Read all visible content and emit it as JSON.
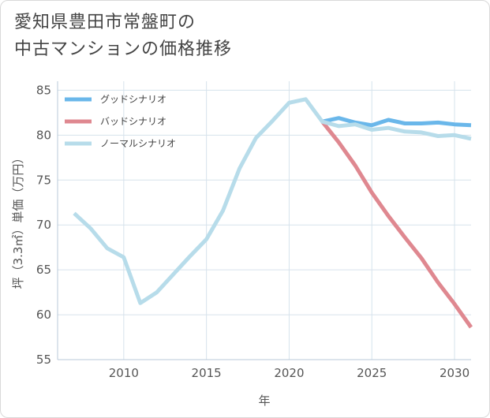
{
  "title": {
    "line1": "愛知県豊田市常盤町の",
    "line2": "中古マンションの価格推移"
  },
  "colors": {
    "good": "#6ab7ea",
    "bad": "#df8890",
    "normal": "#b7dcea",
    "grid": "#d6e2ec",
    "axis": "#b8c8d8"
  },
  "chart_data": {
    "type": "line",
    "title": "愛知県豊田市常盤町の中古マンションの価格推移",
    "xlabel": "年",
    "ylabel": "坪（3.3㎡）単価（万円）",
    "xlim": [
      2006,
      2031
    ],
    "ylim": [
      55,
      86
    ],
    "x_ticks": [
      2010,
      2015,
      2020,
      2025,
      2030
    ],
    "y_ticks": [
      55,
      60,
      65,
      70,
      75,
      80,
      85
    ],
    "legend_position": "top-left",
    "series": [
      {
        "name": "グッドシナリオ",
        "color_key": "good",
        "x": [
          2022,
          2023,
          2024,
          2025,
          2026,
          2027,
          2028,
          2029,
          2030,
          2031
        ],
        "y": [
          81.5,
          81.9,
          81.4,
          81.1,
          81.7,
          81.3,
          81.3,
          81.4,
          81.2,
          81.1
        ]
      },
      {
        "name": "バッドシナリオ",
        "color_key": "bad",
        "x": [
          2022,
          2023,
          2024,
          2025,
          2026,
          2027,
          2028,
          2029,
          2030,
          2031
        ],
        "y": [
          81.5,
          79.2,
          76.6,
          73.6,
          71.0,
          68.6,
          66.3,
          63.6,
          61.2,
          58.6
        ]
      },
      {
        "name": "ノーマルシナリオ",
        "color_key": "normal",
        "x": [
          2007,
          2008,
          2009,
          2010,
          2011,
          2012,
          2013,
          2014,
          2015,
          2016,
          2017,
          2018,
          2019,
          2020,
          2021,
          2022,
          2023,
          2024,
          2025,
          2026,
          2027,
          2028,
          2029,
          2030,
          2031
        ],
        "y": [
          71.3,
          69.6,
          67.4,
          66.4,
          61.3,
          62.5,
          64.5,
          66.5,
          68.4,
          71.6,
          76.3,
          79.7,
          81.6,
          83.6,
          84.0,
          81.5,
          81.0,
          81.2,
          80.6,
          80.8,
          80.4,
          80.3,
          79.9,
          80.0,
          79.6
        ]
      }
    ]
  }
}
